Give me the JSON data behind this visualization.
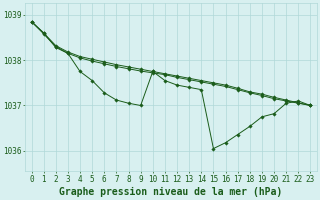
{
  "title": "Graphe pression niveau de la mer (hPa)",
  "hours": [
    0,
    1,
    2,
    3,
    4,
    5,
    6,
    7,
    8,
    9,
    10,
    11,
    12,
    13,
    14,
    15,
    16,
    17,
    18,
    19,
    20,
    21,
    22,
    23
  ],
  "series1": [
    1038.85,
    1038.6,
    1038.3,
    1038.18,
    1037.75,
    1037.55,
    1037.3,
    1037.15,
    1037.05,
    1037.0,
    1037.75,
    1037.55,
    1037.45,
    1037.4,
    1037.35,
    1036.05,
    1036.15,
    1036.35,
    1036.55,
    1036.75,
    1036.8,
    1037.05,
    1037.1,
    1037.0
  ],
  "series2": [
    1038.85,
    1038.58,
    1038.32,
    1038.16,
    1038.07,
    1038.0,
    1037.93,
    1037.87,
    1037.82,
    1037.77,
    1037.72,
    1037.67,
    1037.62,
    1037.57,
    1037.52,
    1037.47,
    1037.42,
    1037.35,
    1037.28,
    1037.22,
    1037.15,
    1037.1,
    1037.05,
    1037.0
  ],
  "series3": [
    1038.85,
    1038.58,
    1038.32,
    1038.16,
    1038.07,
    1038.0,
    1037.93,
    1037.87,
    1037.82,
    1037.77,
    1037.72,
    1037.72,
    1037.68,
    1037.62,
    1037.57,
    1037.47,
    1037.42,
    1037.35,
    1037.28,
    1037.22,
    1037.15,
    1037.1,
    1037.05,
    1037.0
  ],
  "line_color": "#1a5c1a",
  "marker_color": "#1a5c1a",
  "bg_color": "#d8f0f0",
  "grid_color": "#b0d8d8",
  "text_color": "#1a5c1a",
  "ylim_min": 1035.55,
  "ylim_max": 1039.25,
  "yticks": [
    1036,
    1037,
    1038,
    1039
  ],
  "title_fontsize": 7,
  "tick_fontsize": 5.5
}
